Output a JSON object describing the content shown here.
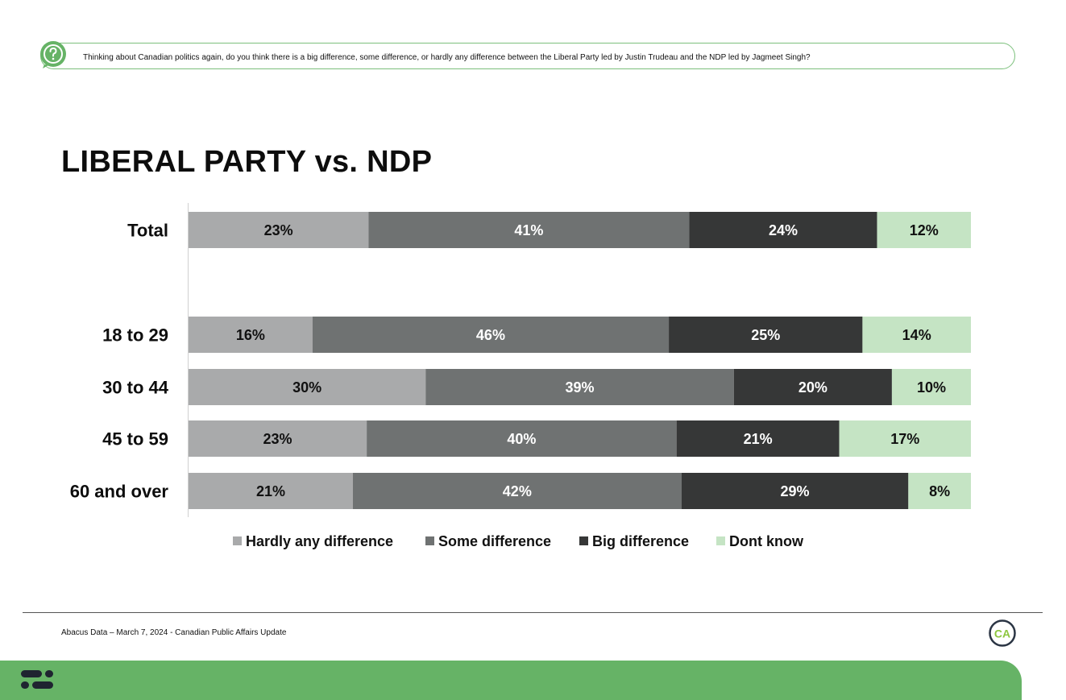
{
  "question": "Thinking about Canadian politics again, do you think there is a big difference, some difference, or hardly any difference between the Liberal Party led by Justin Trudeau and the NDP led by Jagmeet Singh?",
  "icons": {
    "question": "question-mark-icon",
    "brand_logo": "abacus-logo-icon",
    "ca_badge": "ca-badge-icon"
  },
  "ca_badge_text": "CA",
  "source": "Abacus Data – March 7, 2024 - Canadian Public Affairs Update",
  "colors": {
    "accent_green": "#66b366",
    "hardly": "#a9aaab",
    "some": "#6f7272",
    "big": "#363737",
    "dont_know": "#c5e4c4"
  },
  "chart_data": {
    "type": "bar",
    "orientation": "horizontal",
    "stacked": true,
    "normalized_percent": true,
    "title": "LIBERAL PARTY vs. NDP",
    "categories": [
      "Total",
      "18 to 29",
      "30 to 44",
      "45 to 59",
      "60 and over"
    ],
    "series": [
      {
        "name": "Hardly any difference",
        "values": [
          23,
          16,
          30,
          23,
          21
        ],
        "color": "#a9aaab"
      },
      {
        "name": "Some difference",
        "values": [
          41,
          46,
          39,
          40,
          42
        ],
        "color": "#6f7272"
      },
      {
        "name": "Big difference",
        "values": [
          24,
          25,
          20,
          21,
          29
        ],
        "color": "#363737"
      },
      {
        "name": "Dont know",
        "values": [
          12,
          14,
          10,
          17,
          8
        ],
        "color": "#c5e4c4"
      }
    ],
    "value_suffix": "%",
    "legend_position": "bottom",
    "grid": false
  }
}
